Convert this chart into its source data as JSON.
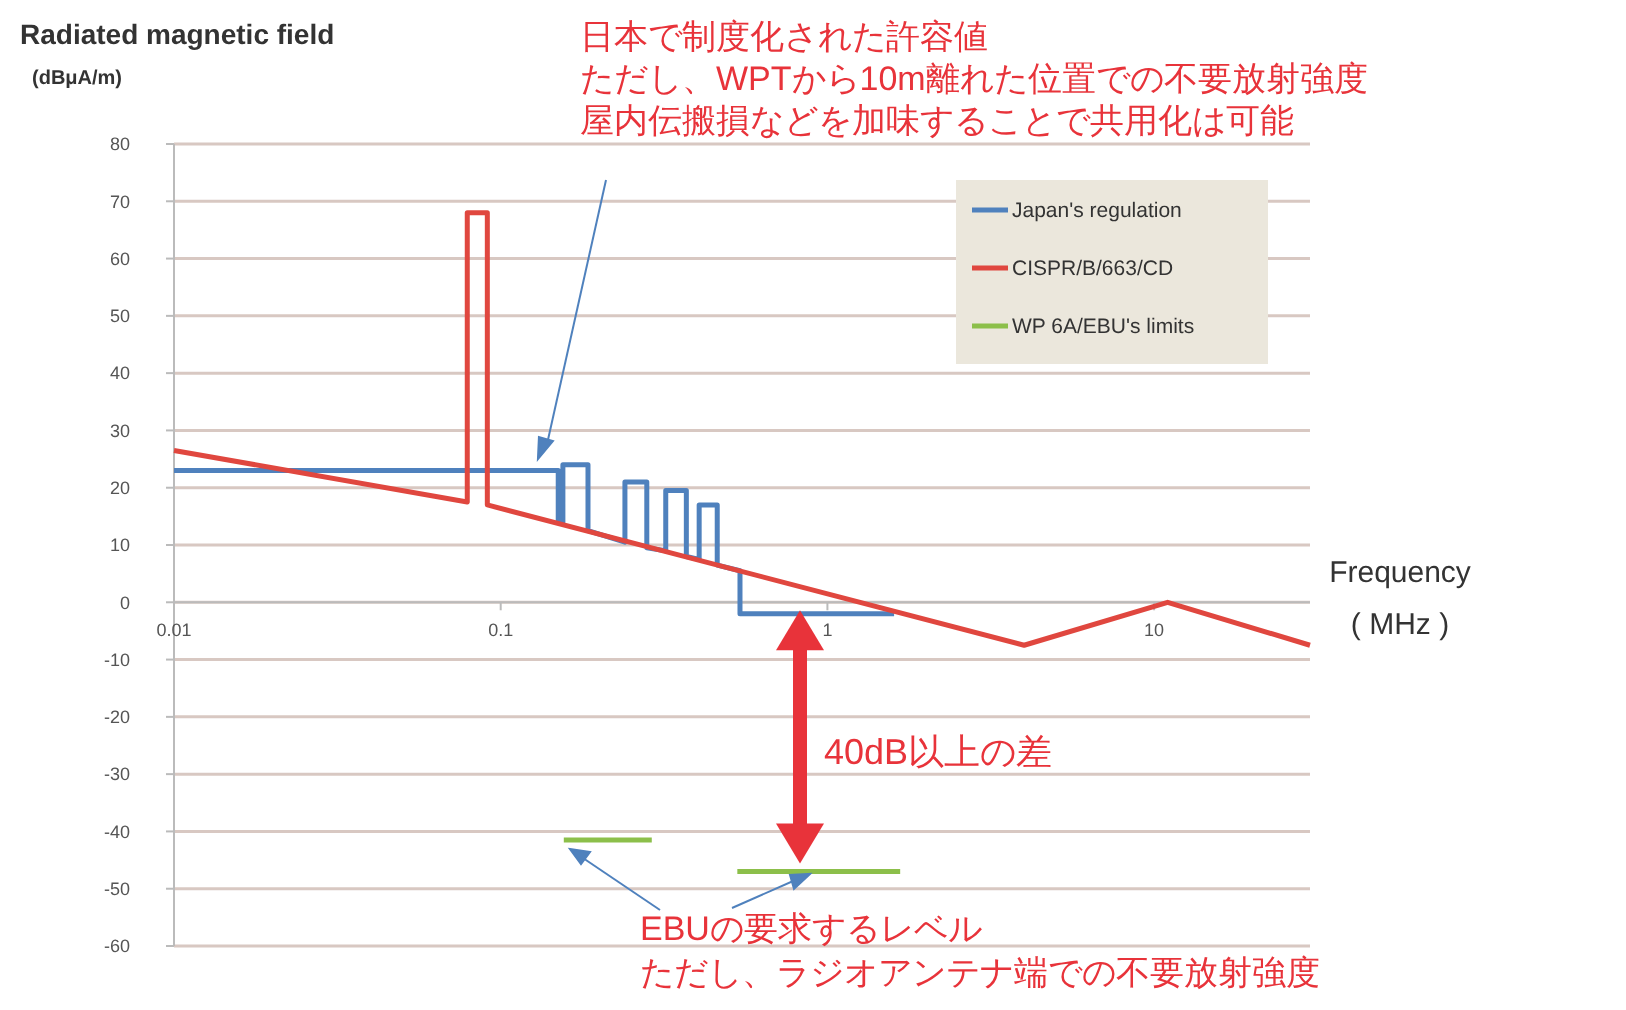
{
  "chart_data": {
    "type": "line",
    "xlabel": "Frequency\n( MHz )",
    "ylabel": "Radiated magnetic field$_{(dBμA/m)}$",
    "log": "x",
    "xlim": [
      0.01,
      30
    ],
    "xticks": [
      0.01,
      0.1,
      1,
      10
    ],
    "ylim": [
      -60,
      80
    ],
    "yticks": [
      -60,
      -50,
      -40,
      -30,
      -20,
      -10,
      0,
      10,
      20,
      30,
      40,
      50,
      60,
      70,
      80
    ],
    "grid": "y",
    "legend": "top right",
    "marker": "none",
    "line_style": "solid",
    "series": [
      {
        "name": "Japan's regulation",
        "color": "#4f81bd",
        "x": [
          0.01,
          0.15,
          0.15,
          0.155,
          0.155,
          0.185,
          0.185,
          0.24,
          0.24,
          0.28,
          0.28,
          0.32,
          0.32,
          0.37,
          0.37,
          0.405,
          0.405,
          0.46,
          0.46,
          0.54,
          0.54,
          1.6
        ],
        "values": [
          23,
          23,
          14,
          14,
          24,
          24,
          12.5,
          10.5,
          21,
          21,
          9.5,
          9,
          19.5,
          19.5,
          8,
          7.5,
          17,
          17,
          6.5,
          5.5,
          -2,
          -2
        ]
      },
      {
        "name": "CISPR/B/663/CD",
        "color": "#e0473f",
        "x": [
          0.01,
          0.079,
          0.079,
          0.091,
          0.091,
          4,
          11,
          30
        ],
        "values": [
          26.5,
          17.5,
          68,
          68,
          17,
          -7.5,
          0,
          -7.5
        ]
      },
      {
        "name": "WP 6A/EBU's limits",
        "color": "#8cbf4a",
        "x": [
          0.156,
          0.29,
          0.4,
          0.53,
          1.67
        ],
        "values": [
          -41.5,
          -41.5,
          null,
          -47,
          -47
        ]
      }
    ],
    "annotations": [
      "日本で制度化された許容値",
      "ただし、WPTから10m離れた位置での不要放射強度",
      {
        "text": "屋内伝搬損などを加味することで共用化は可能",
        "x": 0.13,
        "y": 25
      },
      "40dB以上の差",
      "EBUの要求するレベル",
      "ただし、ラジオアンテナ端での不要放射強度"
    ]
  }
}
